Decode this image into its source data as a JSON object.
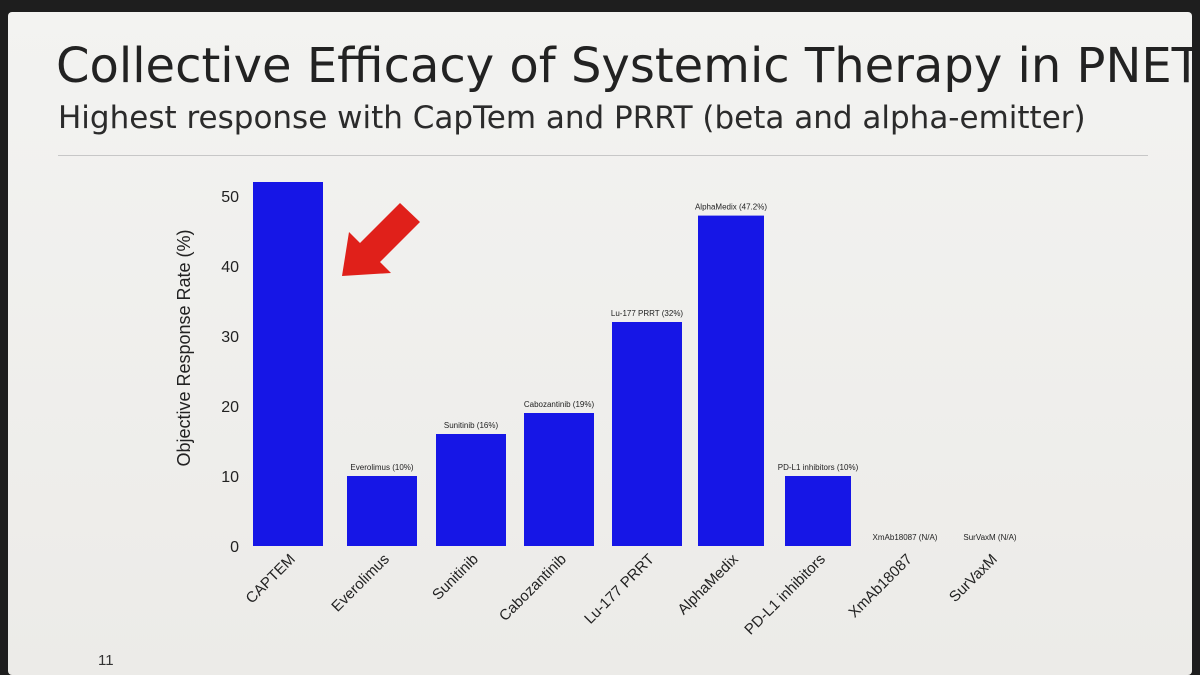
{
  "slide": {
    "title": "Collective Efficacy of Systemic Therapy in PNETs",
    "subtitle": "Highest response with CapTem and PRRT (beta and alpha-emitter)",
    "page_number": "11"
  },
  "colors": {
    "bar": "#1616e6",
    "arrow": "#e0201a",
    "text": "#222222"
  },
  "chart_data": {
    "type": "bar",
    "title": "",
    "xlabel": "",
    "ylabel": "Objective Response Rate (%)",
    "ylim": [
      0,
      52
    ],
    "yticks": [
      0,
      10,
      20,
      30,
      40,
      50
    ],
    "grid": false,
    "categories": [
      "CAPTEM",
      "Everolimus",
      "Sunitinib",
      "Cabozantinib",
      "Lu-177 PRRT",
      "AlphaMedix",
      "PD-L1 inhibitors",
      "XmAb18087",
      "SurVaxM"
    ],
    "values": [
      52,
      10,
      16,
      19,
      32,
      47.2,
      10,
      0,
      0
    ],
    "data_labels": [
      "",
      "Everolimus (10%)",
      "Sunitinib (16%)",
      "Cabozantinib (19%)",
      "Lu-177 PRRT (32%)",
      "AlphaMedix (47.2%)",
      "PD-L1 inhibitors (10%)",
      "XmAb18087 (N/A)",
      "SurVaxM (N/A)"
    ],
    "annotations": [
      {
        "type": "arrow",
        "target": "CAPTEM"
      }
    ]
  }
}
